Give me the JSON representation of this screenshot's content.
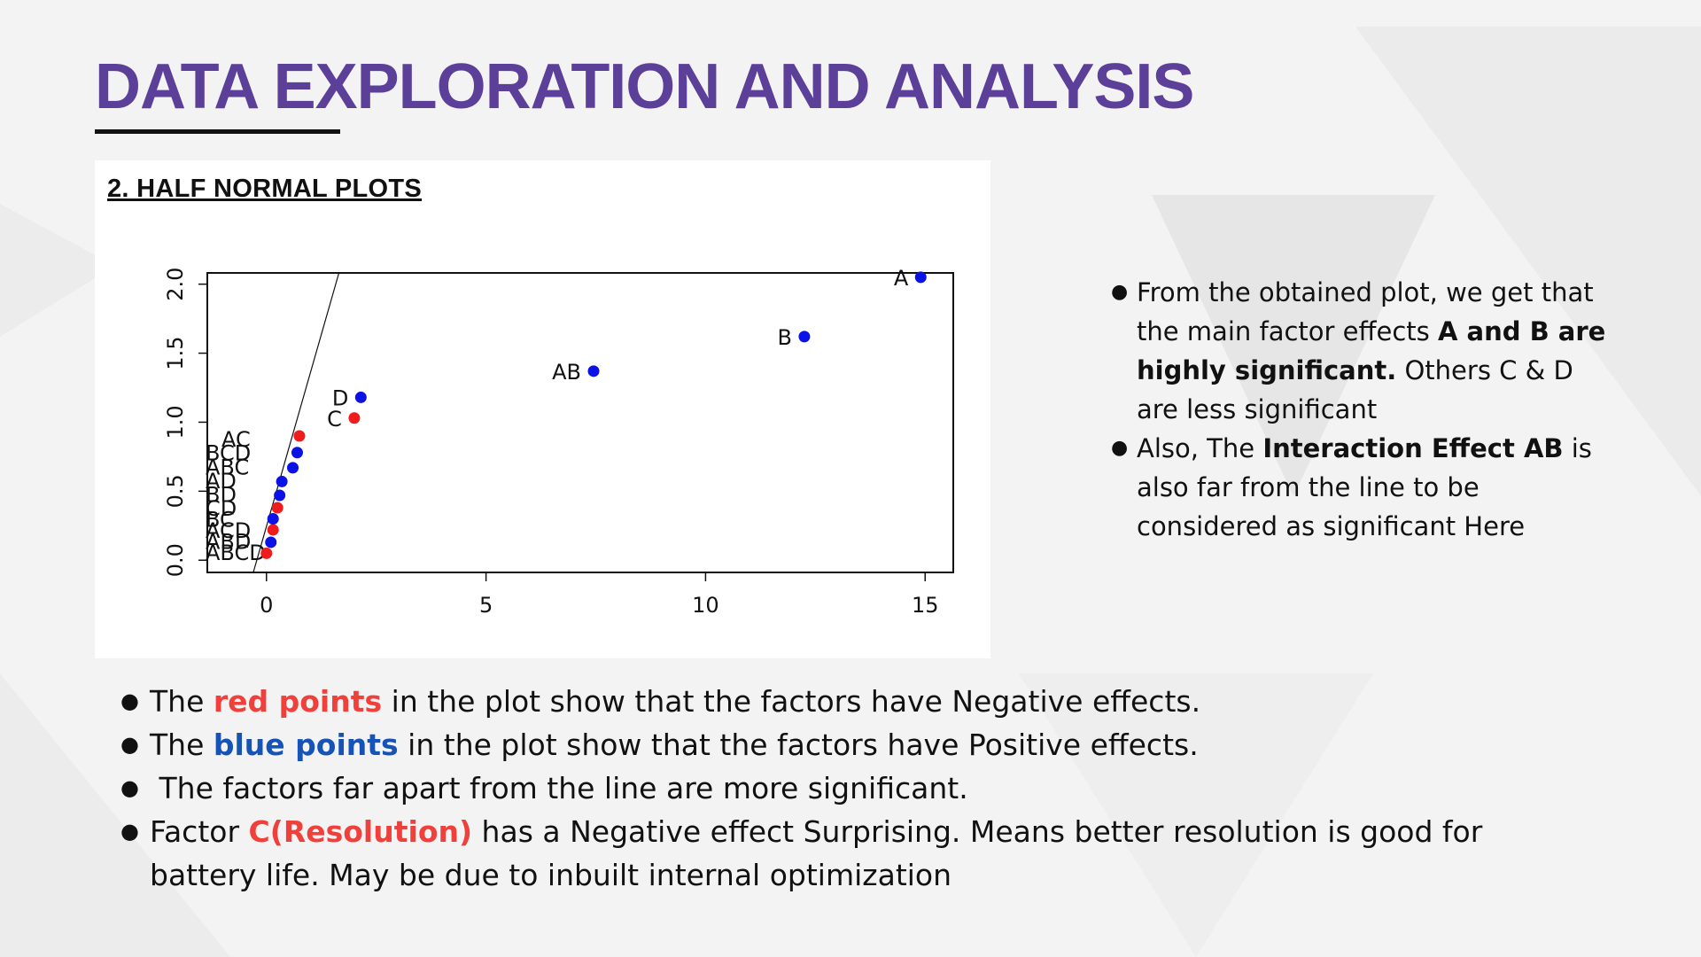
{
  "slide": {
    "title": "DATA EXPLORATION AND ANALYSIS",
    "plot_heading": "2. HALF NORMAL PLOTS",
    "colors": {
      "title": "#5b3f98",
      "red": "#f0403c",
      "blue": "#1553b6"
    }
  },
  "right_bullets": [
    {
      "parts": [
        {
          "text": "From the obtained plot, we get that the main factor effects ",
          "style": "normal"
        },
        {
          "text": "A and B are highly significant.",
          "style": "bold"
        },
        {
          "text": " Others C & D are less significant",
          "style": "normal"
        }
      ]
    },
    {
      "parts": [
        {
          "text": "Also, The ",
          "style": "normal"
        },
        {
          "text": "Interaction Effect AB",
          "style": "bold"
        },
        {
          "text": " is also far from the line to be considered as significant Here",
          "style": "normal"
        }
      ]
    }
  ],
  "bottom_bullets": [
    {
      "parts": [
        {
          "text": "The ",
          "style": "normal"
        },
        {
          "text": "red points",
          "style": "red"
        },
        {
          "text": " in the plot show that the factors have Negative effects.",
          "style": "normal"
        }
      ]
    },
    {
      "parts": [
        {
          "text": "The ",
          "style": "normal"
        },
        {
          "text": "blue points",
          "style": "blue"
        },
        {
          "text": " in the plot show that the factors have Positive effects.",
          "style": "normal"
        }
      ]
    },
    {
      "parts": [
        {
          "text": " The factors far apart from the line are more significant.",
          "style": "normal"
        }
      ]
    },
    {
      "parts": [
        {
          "text": "Factor ",
          "style": "normal"
        },
        {
          "text": "C(Resolution)",
          "style": "red"
        },
        {
          "text": " has a Negative effect Surprising. Means better resolution is good for battery life. May be due to inbuilt internal optimization",
          "style": "normal"
        }
      ]
    }
  ],
  "chart_data": {
    "type": "scatter",
    "title": "",
    "xlabel": "",
    "ylabel": "",
    "xlim": [
      -0.5,
      15.5
    ],
    "ylim": [
      -0.05,
      2.12
    ],
    "x_ticks": [
      0,
      5,
      10,
      15
    ],
    "y_ticks": [
      0.0,
      0.5,
      1.0,
      1.5,
      2.0
    ],
    "x_tick_labels": [
      "0",
      "5",
      "10",
      "15"
    ],
    "y_tick_labels": [
      "0.0",
      "0.5",
      "1.0",
      "1.5",
      "2.0"
    ],
    "grid": false,
    "reference_line": {
      "x": [
        -0.3,
        1.65
      ],
      "y": [
        -0.25,
        2.12
      ]
    },
    "point_colors": {
      "negative": "#ee1c1c",
      "positive": "#0a12e6"
    },
    "points": [
      {
        "label": "",
        "x": 0.0,
        "y": 0.05,
        "sign": "negative"
      },
      {
        "label": "",
        "x": 0.1,
        "y": 0.13,
        "sign": "positive"
      },
      {
        "label": "",
        "x": 0.15,
        "y": 0.22,
        "sign": "negative"
      },
      {
        "label": "",
        "x": 0.15,
        "y": 0.3,
        "sign": "positive"
      },
      {
        "label": "",
        "x": 0.25,
        "y": 0.38,
        "sign": "negative"
      },
      {
        "label": "",
        "x": 0.3,
        "y": 0.47,
        "sign": "positive"
      },
      {
        "label": "",
        "x": 0.35,
        "y": 0.57,
        "sign": "positive"
      },
      {
        "label": "",
        "x": 0.6,
        "y": 0.67,
        "sign": "positive"
      },
      {
        "label": "",
        "x": 0.7,
        "y": 0.78,
        "sign": "positive"
      },
      {
        "label": "",
        "x": 0.75,
        "y": 0.9,
        "sign": "negative"
      },
      {
        "label": "C",
        "x": 2.0,
        "y": 1.03,
        "sign": "negative"
      },
      {
        "label": "D",
        "x": 2.15,
        "y": 1.18,
        "sign": "positive"
      },
      {
        "label": "AB",
        "x": 7.45,
        "y": 1.37,
        "sign": "positive"
      },
      {
        "label": "B",
        "x": 12.25,
        "y": 1.62,
        "sign": "positive"
      },
      {
        "label": "A",
        "x": 14.9,
        "y": 2.05,
        "sign": "positive"
      }
    ],
    "crowded_labels": [
      "AC",
      "BCD",
      "ABC",
      "AD",
      "BD",
      "CD",
      "BC",
      "ACD",
      "ABD",
      "ABCD"
    ]
  }
}
